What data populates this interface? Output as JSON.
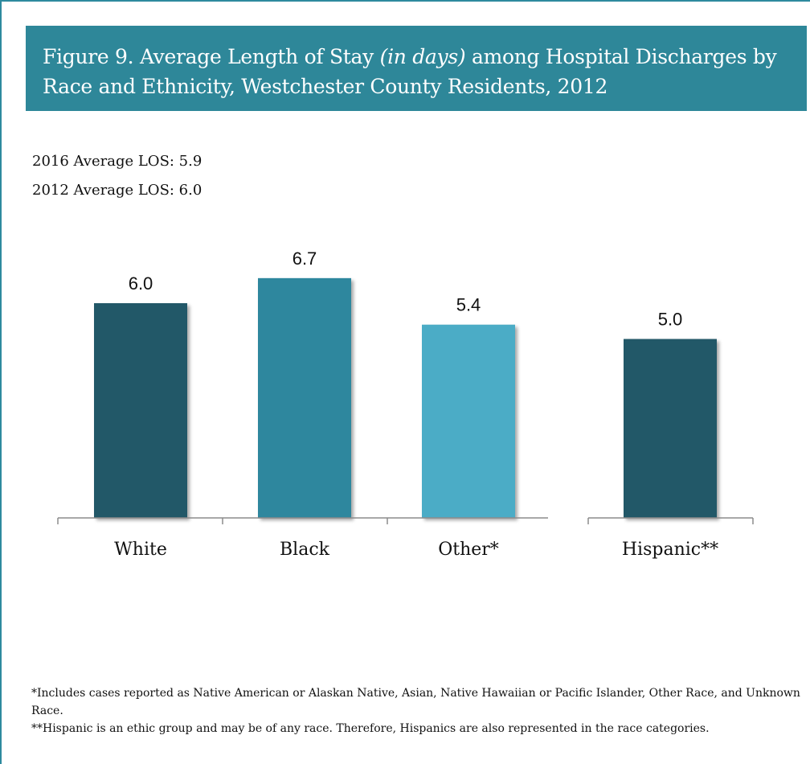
{
  "title": {
    "prefix": "Figure 9.  Average Length of Stay",
    "italic": "(in days)",
    "suffix": "among Hospital Discharges by Race and Ethnicity, Westchester County Residents, 2012"
  },
  "summary": {
    "line1": "2016 Average LOS: 5.9",
    "line2": "2012 Average LOS: 6.0"
  },
  "chart_data": {
    "type": "bar",
    "title": "Figure 9. Average Length of Stay (in days) among Hospital Discharges by Race and Ethnicity, Westchester County Residents, 2012",
    "categories": [
      "White",
      "Black",
      "Other*",
      "Hispanic**"
    ],
    "values": [
      6.0,
      6.7,
      5.4,
      5.0
    ],
    "value_labels": [
      "6.0",
      "6.7",
      "5.4",
      "5.0"
    ],
    "colors": [
      "#235967",
      "#2e879e",
      "#4bacc6",
      "#235967"
    ],
    "ylim": [
      0,
      8
    ],
    "grid": false,
    "legend": "none"
  },
  "footnotes": {
    "note1": "*Includes cases reported as Native American or Alaskan Native, Asian, Native Hawaiian or Pacific Islander, Other Race, and Unknown Race.",
    "note2": "**Hispanic is an ethic group and may be of any race.  Therefore, Hispanics are also represented in the race categories."
  }
}
